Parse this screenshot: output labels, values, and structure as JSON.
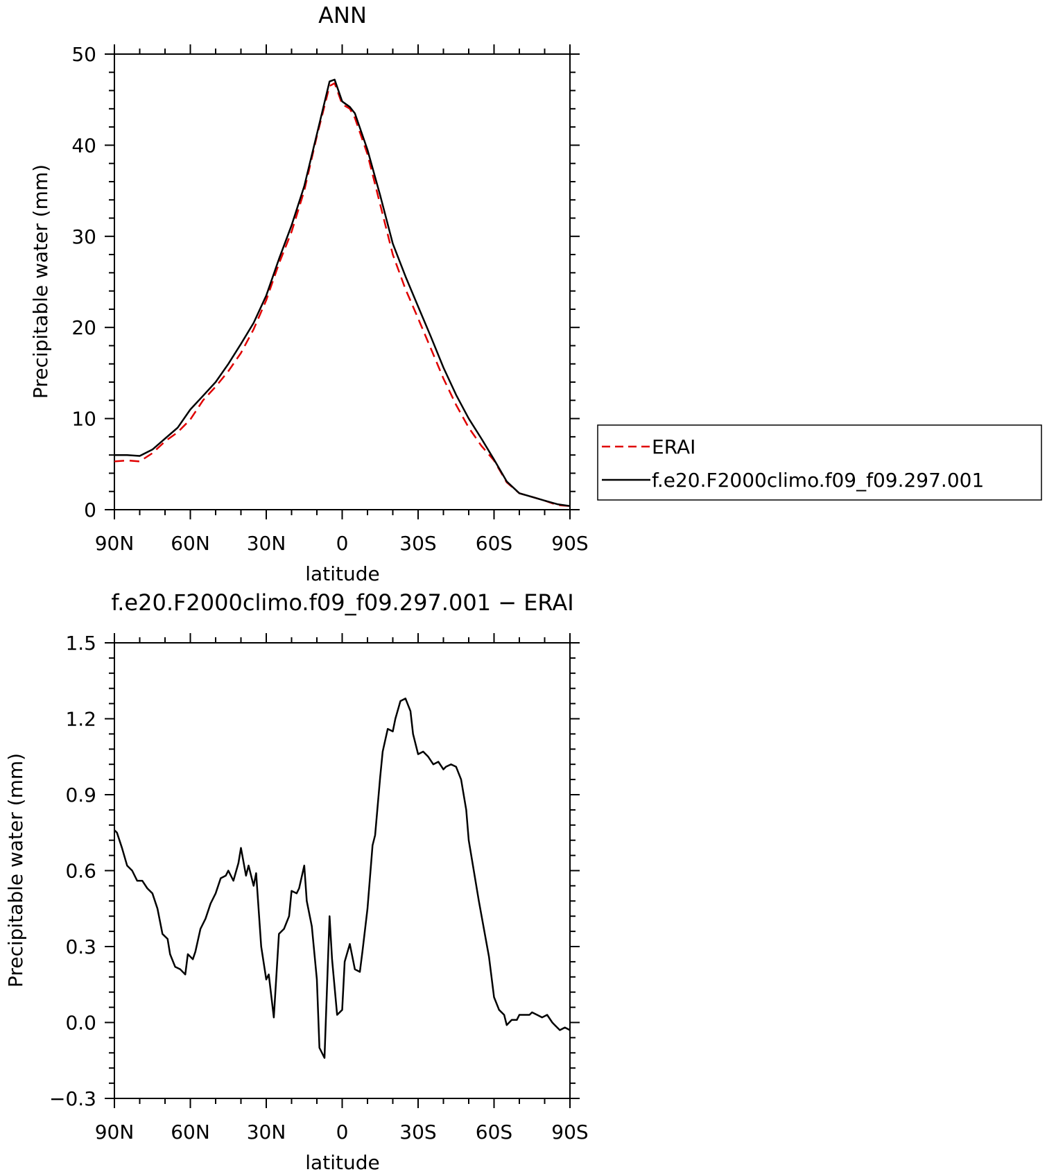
{
  "chart_data": [
    {
      "type": "line",
      "title": "ANN",
      "xlabel": "latitude",
      "ylabel": "Precipitable water (mm)",
      "xlim": [
        90,
        -90
      ],
      "ylim": [
        0,
        50
      ],
      "xticks": [
        90,
        60,
        30,
        0,
        -30,
        -60,
        -90
      ],
      "xtick_labels": [
        "90N",
        "60N",
        "30N",
        "0",
        "30S",
        "60S",
        "90S"
      ],
      "yticks": [
        0,
        10,
        20,
        30,
        40,
        50
      ],
      "ytick_labels": [
        "0",
        "10",
        "20",
        "30",
        "40",
        "50"
      ],
      "legend_position": "right",
      "series": [
        {
          "name": "ERAI",
          "color": "#e00000",
          "dash": "dashed",
          "x": [
            90,
            85,
            80,
            75,
            70,
            65,
            60,
            55,
            50,
            45,
            40,
            35,
            30,
            25,
            20,
            15,
            10,
            5,
            3,
            0,
            -3,
            -5,
            -10,
            -15,
            -20,
            -25,
            -30,
            -35,
            -40,
            -45,
            -50,
            -55,
            -60,
            -65,
            -70,
            -75,
            -80,
            -85,
            -90
          ],
          "y": [
            5.3,
            5.4,
            5.3,
            6.2,
            7.5,
            8.5,
            9.9,
            12.0,
            13.5,
            15.2,
            17.2,
            19.8,
            23.0,
            27.0,
            30.5,
            35.0,
            41.0,
            46.5,
            46.8,
            44.5,
            44.0,
            43.0,
            39.0,
            33.5,
            28.0,
            24.2,
            21.0,
            17.7,
            14.4,
            11.5,
            9.0,
            7.0,
            5.4,
            3.0,
            1.8,
            1.4,
            1.0,
            0.5,
            0.4
          ]
        },
        {
          "name": "f.e20.F2000climo.f09_f09.297.001",
          "color": "#000000",
          "dash": "solid",
          "x": [
            90,
            85,
            80,
            75,
            70,
            65,
            60,
            55,
            50,
            45,
            40,
            35,
            30,
            25,
            20,
            15,
            10,
            5,
            3,
            0,
            -3,
            -5,
            -10,
            -15,
            -20,
            -25,
            -30,
            -35,
            -40,
            -45,
            -50,
            -55,
            -60,
            -65,
            -70,
            -75,
            -80,
            -85,
            -90
          ],
          "y": [
            6.0,
            6.0,
            5.9,
            6.6,
            7.8,
            9.0,
            11.0,
            12.5,
            14.0,
            16.0,
            18.2,
            20.5,
            23.5,
            27.5,
            31.2,
            35.5,
            41.2,
            47.0,
            47.2,
            44.8,
            44.2,
            43.5,
            39.5,
            34.5,
            29.2,
            25.6,
            22.3,
            19.0,
            15.6,
            12.6,
            10.0,
            7.8,
            5.5,
            3.1,
            1.8,
            1.4,
            1.0,
            0.6,
            0.4
          ]
        }
      ]
    },
    {
      "type": "line",
      "title": "f.e20.F2000climo.f09_f09.297.001 − ERAI",
      "xlabel": "latitude",
      "ylabel": "Precipitable water (mm)",
      "xlim": [
        90,
        -90
      ],
      "ylim": [
        -0.3,
        1.5
      ],
      "xticks": [
        90,
        60,
        30,
        0,
        -30,
        -60,
        -90
      ],
      "xtick_labels": [
        "90N",
        "60N",
        "30N",
        "0",
        "30S",
        "60S",
        "90S"
      ],
      "yticks": [
        -0.3,
        0,
        0.3,
        0.6,
        0.9,
        1.2,
        1.5
      ],
      "ytick_labels": [
        "−0.3",
        "0.0",
        "0.3",
        "0.6",
        "0.9",
        "1.2",
        "1.5"
      ],
      "series": [
        {
          "color": "#000000",
          "x": [
            90,
            89,
            87,
            85,
            83,
            81,
            79,
            77,
            75,
            73,
            71,
            69,
            68,
            66,
            64,
            62,
            61,
            59,
            58,
            56,
            54,
            52,
            50,
            48,
            46,
            45,
            43,
            41,
            40,
            38,
            37,
            35,
            34,
            32,
            30,
            29,
            27,
            25,
            23,
            21,
            20,
            18,
            17,
            15,
            14,
            12,
            10,
            9,
            7,
            5,
            4,
            2,
            0,
            -1,
            -3,
            -5,
            -7,
            -8,
            -10,
            -12,
            -13,
            -15,
            -16,
            -18,
            -20,
            -21,
            -23,
            -25,
            -27,
            -28,
            -30,
            -32,
            -34,
            -36,
            -38,
            -40,
            -41,
            -43,
            -45,
            -47,
            -49,
            -50,
            -52,
            -54,
            -56,
            -58,
            -60,
            -62,
            -64,
            -65,
            -67,
            -69,
            -70,
            -72,
            -74,
            -75,
            -77,
            -79,
            -81,
            -83,
            -84,
            -86,
            -88,
            -90
          ],
          "y": [
            0.76,
            0.75,
            0.69,
            0.62,
            0.6,
            0.56,
            0.56,
            0.53,
            0.51,
            0.45,
            0.35,
            0.33,
            0.27,
            0.22,
            0.21,
            0.19,
            0.27,
            0.25,
            0.28,
            0.37,
            0.41,
            0.47,
            0.51,
            0.57,
            0.58,
            0.6,
            0.56,
            0.63,
            0.69,
            0.58,
            0.62,
            0.54,
            0.59,
            0.3,
            0.17,
            0.19,
            0.02,
            0.35,
            0.37,
            0.42,
            0.52,
            0.51,
            0.53,
            0.62,
            0.48,
            0.38,
            0.17,
            -0.1,
            -0.14,
            0.42,
            0.25,
            0.03,
            0.05,
            0.24,
            0.31,
            0.21,
            0.2,
            0.28,
            0.45,
            0.7,
            0.74,
            0.97,
            1.07,
            1.16,
            1.15,
            1.2,
            1.27,
            1.28,
            1.23,
            1.14,
            1.06,
            1.07,
            1.05,
            1.02,
            1.03,
            1.0,
            1.01,
            1.02,
            1.01,
            0.96,
            0.84,
            0.72,
            0.6,
            0.48,
            0.37,
            0.26,
            0.1,
            0.05,
            0.03,
            -0.01,
            0.01,
            0.01,
            0.03,
            0.03,
            0.03,
            0.04,
            0.03,
            0.02,
            0.03,
            0.0,
            -0.01,
            -0.03,
            -0.02,
            -0.03
          ]
        }
      ]
    }
  ]
}
